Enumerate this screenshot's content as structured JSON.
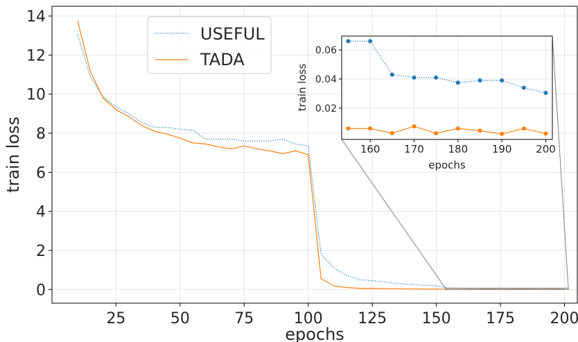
{
  "chart_data": [
    {
      "type": "line",
      "xlabel": "epochs",
      "ylabel": "train loss",
      "xlim": [
        0,
        205
      ],
      "ylim": [
        -0.7,
        14.5
      ],
      "xticks": [
        25,
        50,
        75,
        100,
        125,
        150,
        175,
        200
      ],
      "yticks": [
        0,
        2,
        4,
        6,
        8,
        10,
        12,
        14
      ],
      "grid": true,
      "legend_position": "upper-center",
      "series": [
        {
          "name": "USEFUL",
          "color": "#1f77b4",
          "style": "dotted",
          "x": [
            10,
            15,
            20,
            25,
            30,
            35,
            40,
            45,
            50,
            55,
            60,
            65,
            70,
            75,
            80,
            85,
            90,
            95,
            100,
            105,
            110,
            115,
            120,
            125,
            130,
            135,
            140,
            145,
            150,
            155,
            160,
            165,
            170,
            175,
            180,
            185,
            190,
            195,
            200
          ],
          "y": [
            13.05,
            10.9,
            9.85,
            9.35,
            9.0,
            8.55,
            8.3,
            8.3,
            8.2,
            8.15,
            7.7,
            7.7,
            7.7,
            7.6,
            7.6,
            7.6,
            7.7,
            7.45,
            7.35,
            1.8,
            1.1,
            0.72,
            0.5,
            0.45,
            0.38,
            0.3,
            0.25,
            0.22,
            0.18,
            0.066,
            0.066,
            0.043,
            0.041,
            0.041,
            0.0375,
            0.039,
            0.039,
            0.034,
            0.0305
          ]
        },
        {
          "name": "TADA",
          "color": "#ff7f0e",
          "style": "solid",
          "x": [
            10,
            15,
            20,
            25,
            30,
            35,
            40,
            45,
            50,
            55,
            60,
            65,
            70,
            75,
            80,
            85,
            90,
            95,
            100,
            105,
            110,
            115,
            120,
            125,
            130,
            135,
            140,
            145,
            150,
            155,
            160,
            165,
            170,
            175,
            180,
            185,
            190,
            195,
            200
          ],
          "y": [
            13.75,
            11.15,
            9.8,
            9.2,
            8.85,
            8.4,
            8.1,
            7.95,
            7.75,
            7.5,
            7.45,
            7.3,
            7.2,
            7.35,
            7.2,
            7.1,
            6.95,
            7.1,
            6.9,
            0.55,
            0.18,
            0.1,
            0.06,
            0.05,
            0.04,
            0.035,
            0.03,
            0.025,
            0.02,
            0.006,
            0.006,
            0.0028,
            0.0075,
            0.0027,
            0.006,
            0.0045,
            0.0023,
            0.006,
            0.0025
          ]
        }
      ],
      "inset": {
        "type": "line",
        "xlabel": "epochs",
        "ylabel": "train loss",
        "xlim": [
          153.5,
          201.5
        ],
        "ylim": [
          -0.0015,
          0.0695
        ],
        "xticks": [
          160,
          170,
          180,
          190,
          200
        ],
        "yticks": [
          0.02,
          0.04,
          0.06
        ],
        "ytick_labels": [
          "0.02",
          "0.04",
          "0.06"
        ],
        "x": [
          155,
          160,
          165,
          170,
          175,
          180,
          185,
          190,
          195,
          200
        ],
        "useful": [
          0.066,
          0.066,
          0.043,
          0.041,
          0.041,
          0.0375,
          0.039,
          0.039,
          0.034,
          0.0305
        ],
        "tada": [
          0.006,
          0.006,
          0.0028,
          0.0075,
          0.0027,
          0.006,
          0.0045,
          0.0023,
          0.006,
          0.0025
        ]
      }
    }
  ]
}
